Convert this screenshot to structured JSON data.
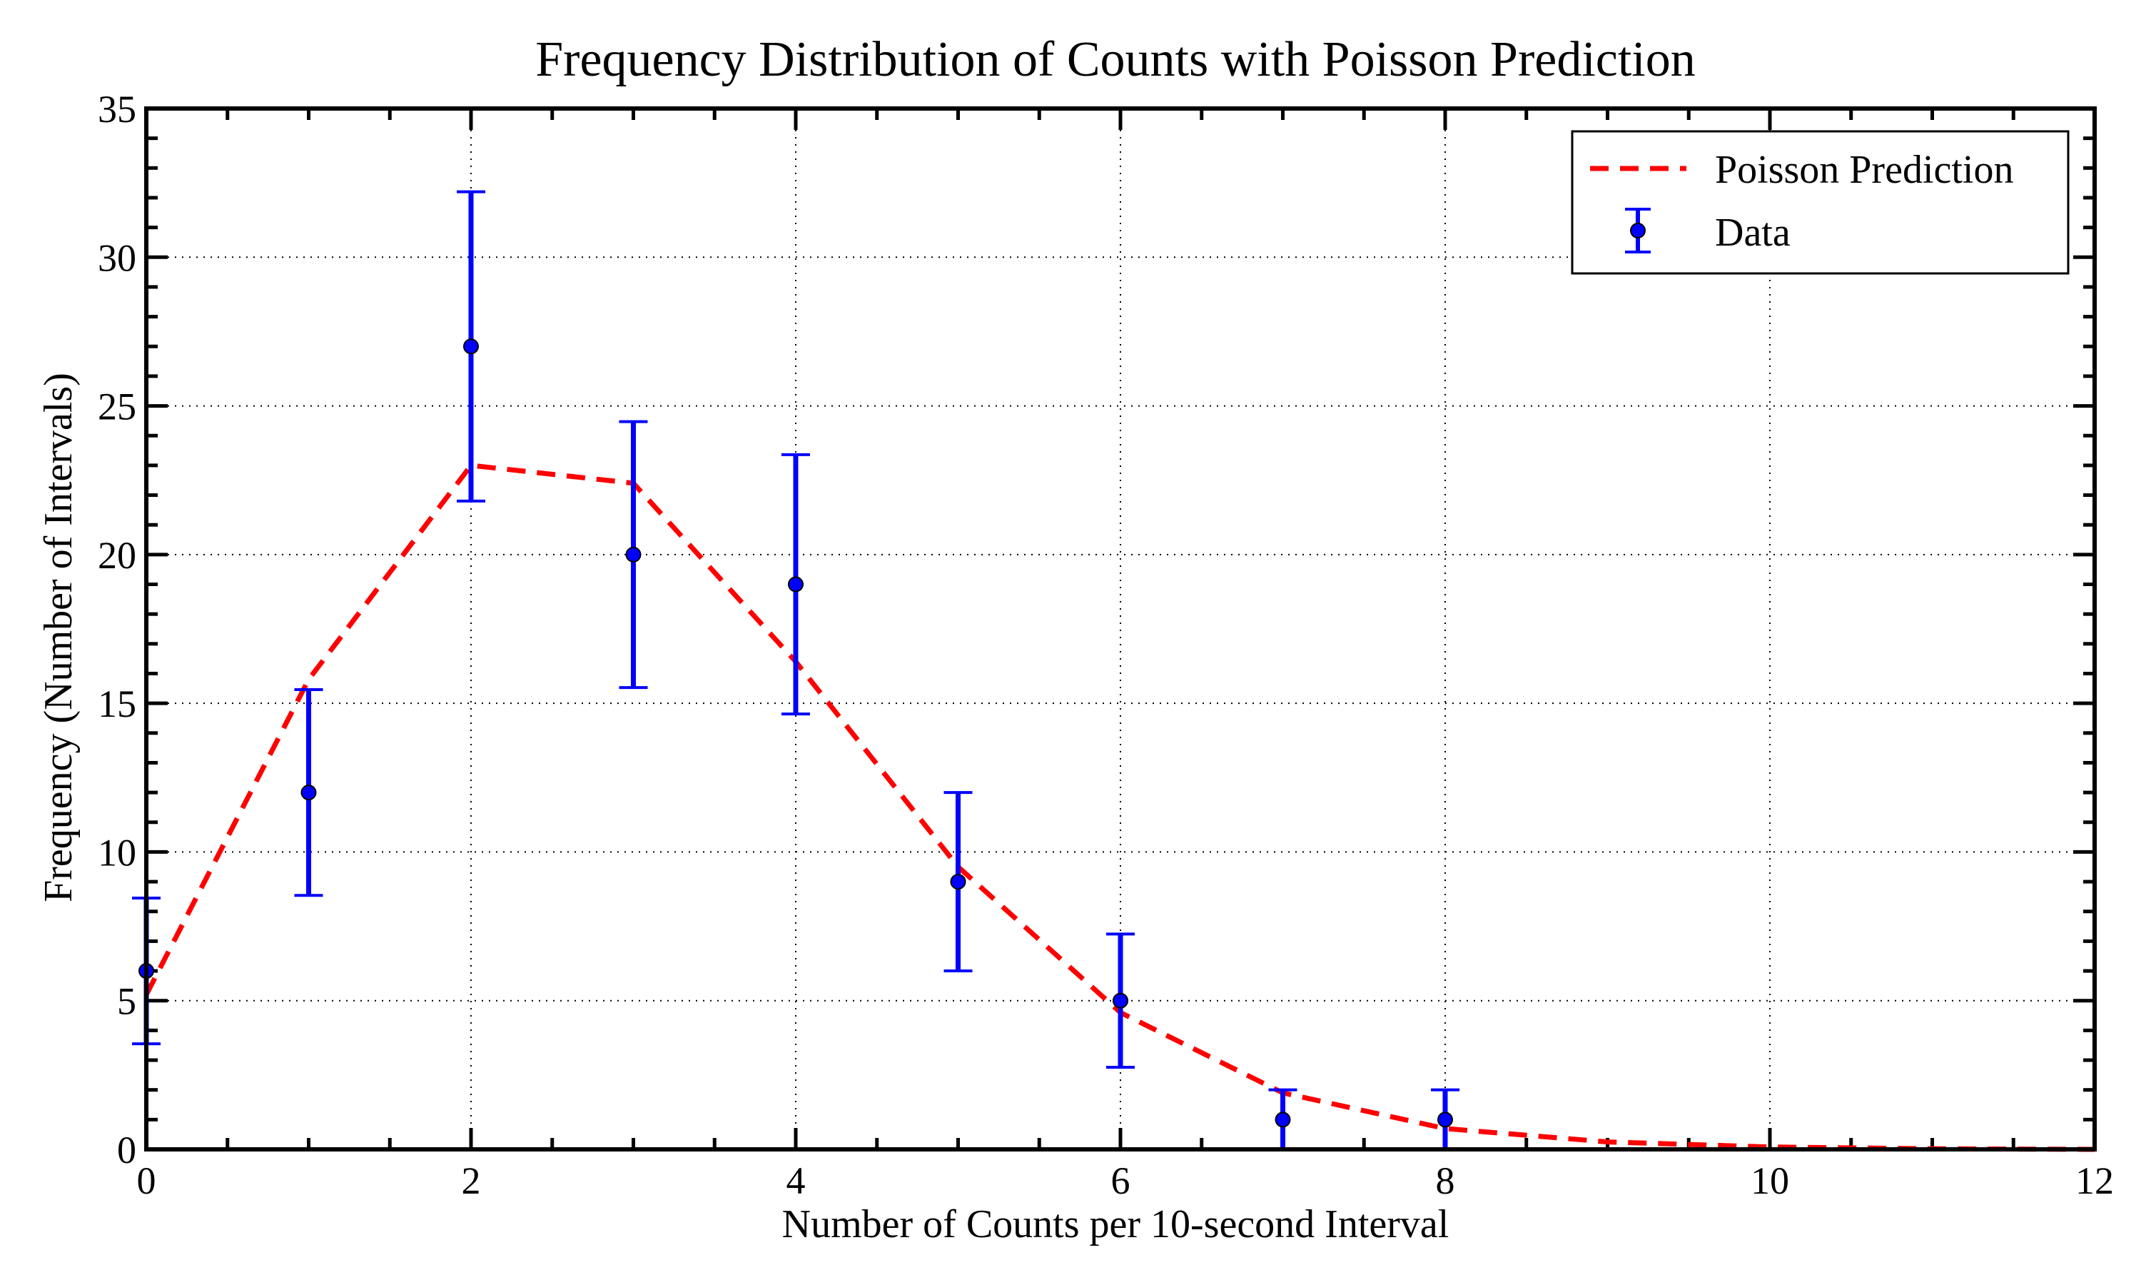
{
  "chart_data": {
    "type": "scatter",
    "title": "Frequency Distribution of Counts with Poisson Prediction",
    "xlabel": "Number of Counts per 10-second Interval",
    "ylabel": "Frequency (Number of Intervals)",
    "xlim": [
      0,
      12
    ],
    "ylim": [
      0,
      35
    ],
    "xticks": [
      0,
      2,
      4,
      6,
      8,
      10,
      12
    ],
    "yticks": [
      0,
      5,
      10,
      15,
      20,
      25,
      30,
      35
    ],
    "grid": true,
    "legend_position": "top-right",
    "series": [
      {
        "name": "Poisson Prediction",
        "kind": "line",
        "style": "dashed",
        "color": "#ff0000",
        "x": [
          0,
          1,
          2,
          3,
          4,
          5,
          6,
          7,
          8,
          9,
          10,
          11,
          12
        ],
        "y": [
          5.2,
          15.8,
          23.0,
          22.4,
          16.4,
          9.5,
          4.6,
          1.9,
          0.7,
          0.25,
          0.08,
          0.02,
          0.0
        ]
      },
      {
        "name": "Data",
        "kind": "errorbar",
        "color": "#0000ff",
        "x": [
          0,
          1,
          2,
          3,
          4,
          5,
          6,
          7,
          8
        ],
        "y": [
          6,
          12,
          27,
          20,
          19,
          9,
          5,
          1,
          1
        ],
        "yerr": [
          2.45,
          3.46,
          5.2,
          4.47,
          4.36,
          3.0,
          2.24,
          1.0,
          1.0
        ]
      }
    ]
  }
}
